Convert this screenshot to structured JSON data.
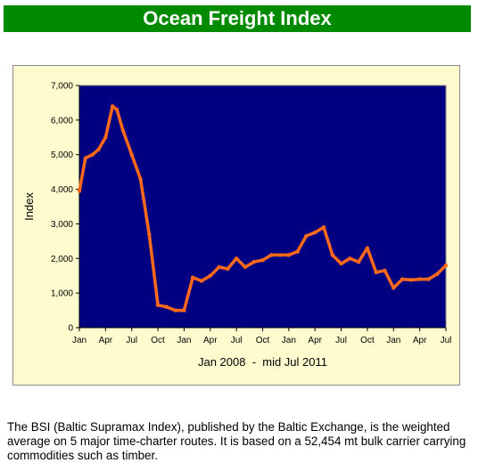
{
  "header": {
    "title": "Ocean Freight Index"
  },
  "description": "The BSI (Baltic Supramax Index), published by the Baltic Exchange, is the weighted average on 5 major time-charter routes. It is based on a 52,454 mt bulk carrier carrying commodities such as timber.",
  "colors": {
    "title_bg": "#008a00",
    "plot_bg": "#000080",
    "chart_bg": "#fefccf",
    "line": "#ff6a1a"
  },
  "chart_data": {
    "type": "line",
    "title": "",
    "xlabel": "Jan 2008  -  mid Jul 2011",
    "ylabel": "Index",
    "ylim": [
      0,
      7000
    ],
    "yticks": [
      0,
      1000,
      2000,
      3000,
      4000,
      5000,
      6000,
      7000
    ],
    "ytick_labels": [
      "0",
      "1,000",
      "2,000",
      "3,000",
      "4,000",
      "5,000",
      "6,000",
      "7,000"
    ],
    "xlim": [
      0,
      42
    ],
    "xticks": [
      0,
      3,
      6,
      9,
      12,
      15,
      18,
      21,
      24,
      27,
      30,
      33,
      36,
      39,
      42
    ],
    "xtick_labels": [
      "Jan",
      "Apr",
      "Jul",
      "Oct",
      "Jan",
      "Apr",
      "Jul",
      "Oct",
      "Jan",
      "Apr",
      "Jul",
      "Oct",
      "Jan",
      "Apr",
      "Jul"
    ],
    "grid": false,
    "legend": "none",
    "series": [
      {
        "x": [
          0,
          0.7,
          1.5,
          2.2,
          3,
          3.8,
          4.3,
          5,
          6,
          7,
          8,
          9,
          10,
          11,
          12,
          13,
          14,
          15,
          16,
          17,
          18,
          19,
          20,
          21,
          22,
          23,
          24,
          25,
          26,
          27,
          28,
          29,
          30,
          31,
          32,
          33,
          34,
          35,
          36,
          37,
          38,
          39,
          40,
          41,
          42
        ],
        "y": [
          3950,
          4900,
          5000,
          5150,
          5500,
          6400,
          6300,
          5700,
          5000,
          4300,
          2700,
          650,
          600,
          500,
          500,
          1450,
          1350,
          1500,
          1750,
          1700,
          2000,
          1750,
          1900,
          1950,
          2100,
          2100,
          2100,
          2200,
          2650,
          2750,
          2900,
          2100,
          1850,
          2000,
          1900,
          2300,
          1600,
          1650,
          1150,
          1400,
          1380,
          1400,
          1400,
          1550,
          1800
        ]
      }
    ]
  }
}
